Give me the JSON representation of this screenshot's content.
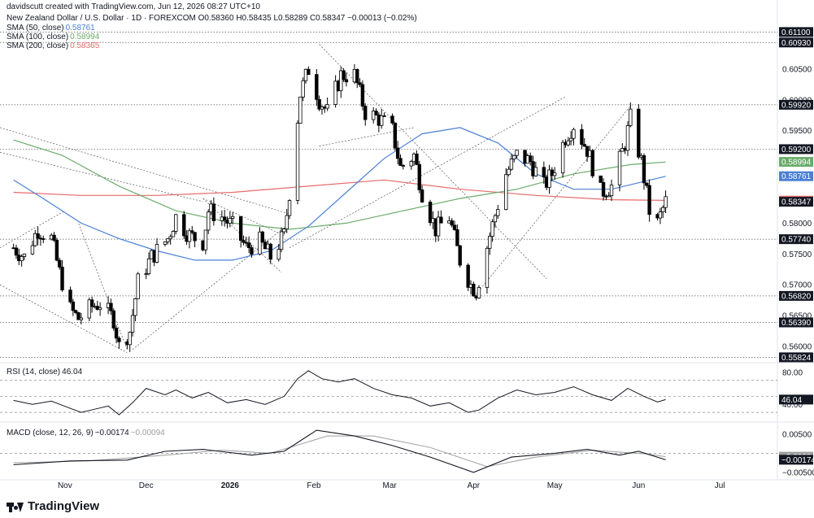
{
  "header": {
    "attribution": "davidscutt created with TradingView.com, Jun 12, 2026 08:27 UTC+10",
    "ohlc_line": "New Zealand Dollar / U.S. Dollar · 1D · FOREXCOM  O0.58360 H0.58435 L0.58289 C0.58347 −0.00013 (−0.02%)",
    "sma50_label": "SMA (50, close)",
    "sma50_value": "0.58761",
    "sma100_label": "SMA (100, close)",
    "sma100_value": "0.58994",
    "sma200_label": "SMA (200, close)",
    "sma200_value": "0.58365",
    "rsi_label": "RSI (14, close)",
    "rsi_value": "46.04",
    "macd_label": "MACD (close, 12, 26, 9)",
    "macd_value": "−0.00174",
    "macd_signal_value": "−0.00094"
  },
  "logo": {
    "text": "TradingView",
    "icon": "tradingview-logo-icon"
  },
  "colors": {
    "up": "#ffffff",
    "down": "#000000",
    "wick": "#000000",
    "sma50": "#4a7fd6",
    "sma100": "#6aab6a",
    "sma200": "#e86a6a",
    "rsi": "#131722",
    "macd": "#131722",
    "signal": "#9e9e9e",
    "price_tag": "#131722",
    "axis_text": "#131722"
  },
  "chart_data": {
    "type": "candlestick",
    "price_axis": {
      "ticks": [
        "0.60500",
        "0.60000",
        "0.59500",
        "0.58000",
        "0.57500",
        "0.57000",
        "0.56500",
        "0.56000"
      ],
      "ylim": [
        0.5575,
        0.6125
      ]
    },
    "time_axis": {
      "labels": [
        "Nov",
        "Dec",
        "2026",
        "Feb",
        "Mar",
        "Apr",
        "May",
        "Jun",
        "Jul"
      ]
    },
    "horizontal_levels": [
      "0.61100",
      "0.60930",
      "0.59920",
      "0.59200",
      "0.57740",
      "0.56820",
      "0.56390",
      "0.55824"
    ],
    "current_tags": [
      {
        "text": "0.58994",
        "series": "sma100"
      },
      {
        "text": "0.58761",
        "series": "sma50"
      },
      {
        "text": "0.58365",
        "series": "sma200"
      },
      {
        "text": "0.58347",
        "series": "price"
      }
    ],
    "close_path": [
      [
        "2025-10-13",
        0.576
      ],
      [
        "2025-10-17",
        0.5745
      ],
      [
        "2025-10-22",
        0.579
      ],
      [
        "2025-10-27",
        0.5775
      ],
      [
        "2025-10-30",
        0.572
      ],
      [
        "2025-11-03",
        0.566
      ],
      [
        "2025-11-06",
        0.5645
      ],
      [
        "2025-11-11",
        0.5665
      ],
      [
        "2025-11-14",
        0.567
      ],
      [
        "2025-11-19",
        0.5645
      ],
      [
        "2025-11-21",
        0.56
      ],
      [
        "2025-11-25",
        0.5625
      ],
      [
        "2025-11-28",
        0.5705
      ],
      [
        "2025-12-03",
        0.5745
      ],
      [
        "2025-12-09",
        0.5775
      ],
      [
        "2025-12-12",
        0.581
      ],
      [
        "2025-12-17",
        0.578
      ],
      [
        "2025-12-22",
        0.577
      ],
      [
        "2025-12-24",
        0.582
      ],
      [
        "2025-12-29",
        0.581
      ],
      [
        "2026-01-02",
        0.5795
      ],
      [
        "2026-01-07",
        0.576
      ],
      [
        "2026-01-12",
        0.577
      ],
      [
        "2026-01-16",
        0.5745
      ],
      [
        "2026-01-21",
        0.578
      ],
      [
        "2026-01-23",
        0.585
      ],
      [
        "2026-01-27",
        0.601
      ],
      [
        "2026-01-30",
        0.605
      ],
      [
        "2026-02-03",
        0.6
      ],
      [
        "2026-02-06",
        0.598
      ],
      [
        "2026-02-11",
        0.604
      ],
      [
        "2026-02-16",
        0.604
      ],
      [
        "2026-02-20",
        0.598
      ],
      [
        "2026-02-25",
        0.597
      ],
      [
        "2026-03-02",
        0.595
      ],
      [
        "2026-03-05",
        0.589
      ],
      [
        "2026-03-10",
        0.591
      ],
      [
        "2026-03-13",
        0.585
      ],
      [
        "2026-03-18",
        0.579
      ],
      [
        "2026-03-23",
        0.581
      ],
      [
        "2026-03-27",
        0.574
      ],
      [
        "2026-03-31",
        0.57
      ],
      [
        "2026-04-02",
        0.569
      ],
      [
        "2026-04-07",
        0.578
      ],
      [
        "2026-04-13",
        0.588
      ],
      [
        "2026-04-17",
        0.591
      ],
      [
        "2026-04-22",
        0.59
      ],
      [
        "2026-04-27",
        0.586
      ],
      [
        "2026-04-30",
        0.588
      ],
      [
        "2026-05-05",
        0.594
      ],
      [
        "2026-05-08",
        0.596
      ],
      [
        "2026-05-13",
        0.592
      ],
      [
        "2026-05-18",
        0.585
      ],
      [
        "2026-05-22",
        0.586
      ],
      [
        "2026-05-27",
        0.593
      ],
      [
        "2026-05-29",
        0.597
      ],
      [
        "2026-06-02",
        0.59
      ],
      [
        "2026-06-05",
        0.582
      ],
      [
        "2026-06-08",
        0.58
      ],
      [
        "2026-06-11",
        0.5835
      ]
    ],
    "sma50": [
      [
        "2025-10-13",
        0.587
      ],
      [
        "2025-10-24",
        0.584
      ],
      [
        "2025-11-07",
        0.58
      ],
      [
        "2025-11-21",
        0.5775
      ],
      [
        "2025-12-05",
        0.5755
      ],
      [
        "2025-12-19",
        0.574
      ],
      [
        "2026-01-02",
        0.574
      ],
      [
        "2026-01-16",
        0.5755
      ],
      [
        "2026-01-30",
        0.5795
      ],
      [
        "2026-02-13",
        0.585
      ],
      [
        "2026-02-27",
        0.5905
      ],
      [
        "2026-03-13",
        0.5945
      ],
      [
        "2026-03-27",
        0.5955
      ],
      [
        "2026-04-10",
        0.593
      ],
      [
        "2026-04-24",
        0.588
      ],
      [
        "2026-05-08",
        0.5855
      ],
      [
        "2026-05-22",
        0.5855
      ],
      [
        "2026-06-11",
        0.5876
      ]
    ],
    "sma100": [
      [
        "2025-10-13",
        0.5935
      ],
      [
        "2025-10-31",
        0.591
      ],
      [
        "2025-11-21",
        0.586
      ],
      [
        "2025-12-12",
        0.582
      ],
      [
        "2026-01-02",
        0.58
      ],
      [
        "2026-01-23",
        0.579
      ],
      [
        "2026-02-13",
        0.58
      ],
      [
        "2026-03-06",
        0.582
      ],
      [
        "2026-03-27",
        0.584
      ],
      [
        "2026-04-17",
        0.5855
      ],
      [
        "2026-05-08",
        0.588
      ],
      [
        "2026-05-29",
        0.5895
      ],
      [
        "2026-06-11",
        0.5899
      ]
    ],
    "sma200": [
      [
        "2025-10-13",
        0.585
      ],
      [
        "2025-11-07",
        0.5845
      ],
      [
        "2025-12-05",
        0.5845
      ],
      [
        "2026-01-02",
        0.585
      ],
      [
        "2026-01-30",
        0.586
      ],
      [
        "2026-02-27",
        0.587
      ],
      [
        "2026-03-27",
        0.5855
      ],
      [
        "2026-04-24",
        0.5845
      ],
      [
        "2026-05-22",
        0.5838
      ],
      [
        "2026-06-11",
        0.5837
      ]
    ],
    "rsi": {
      "ticks": [
        "80.00",
        "40.00"
      ],
      "ylim": [
        20,
        90
      ],
      "levels": [
        70,
        50,
        30
      ],
      "series": [
        [
          "2025-10-13",
          45
        ],
        [
          "2025-10-20",
          40
        ],
        [
          "2025-10-27",
          44
        ],
        [
          "2025-11-03",
          35
        ],
        [
          "2025-11-07",
          30
        ],
        [
          "2025-11-12",
          34
        ],
        [
          "2025-11-17",
          38
        ],
        [
          "2025-11-21",
          27
        ],
        [
          "2025-11-26",
          42
        ],
        [
          "2025-12-01",
          60
        ],
        [
          "2025-12-08",
          52
        ],
        [
          "2025-12-12",
          58
        ],
        [
          "2025-12-18",
          48
        ],
        [
          "2025-12-24",
          55
        ],
        [
          "2025-12-31",
          42
        ],
        [
          "2026-01-07",
          46
        ],
        [
          "2026-01-14",
          40
        ],
        [
          "2026-01-21",
          50
        ],
        [
          "2026-01-26",
          72
        ],
        [
          "2026-01-30",
          82
        ],
        [
          "2026-02-04",
          72
        ],
        [
          "2026-02-10",
          68
        ],
        [
          "2026-02-16",
          72
        ],
        [
          "2026-02-23",
          60
        ],
        [
          "2026-03-02",
          52
        ],
        [
          "2026-03-09",
          48
        ],
        [
          "2026-03-16",
          38
        ],
        [
          "2026-03-23",
          42
        ],
        [
          "2026-03-30",
          30
        ],
        [
          "2026-04-03",
          33
        ],
        [
          "2026-04-10",
          48
        ],
        [
          "2026-04-17",
          58
        ],
        [
          "2026-04-24",
          52
        ],
        [
          "2026-05-01",
          55
        ],
        [
          "2026-05-08",
          62
        ],
        [
          "2026-05-15",
          52
        ],
        [
          "2026-05-22",
          45
        ],
        [
          "2026-05-28",
          60
        ],
        [
          "2026-06-03",
          50
        ],
        [
          "2026-06-08",
          43
        ],
        [
          "2026-06-11",
          46
        ]
      ]
    },
    "macd": {
      "ticks": [
        "0.00500",
        "−0.00500"
      ],
      "ylim": [
        -0.0065,
        0.0075
      ],
      "macd_series": [
        [
          "2025-10-13",
          -0.003
        ],
        [
          "2025-11-03",
          -0.002
        ],
        [
          "2025-11-24",
          -0.0018
        ],
        [
          "2025-12-08",
          0.0005
        ],
        [
          "2025-12-22",
          0.001
        ],
        [
          "2026-01-09",
          -0.0005
        ],
        [
          "2026-01-21",
          0.0005
        ],
        [
          "2026-02-02",
          0.006
        ],
        [
          "2026-02-16",
          0.0045
        ],
        [
          "2026-03-02",
          0.002
        ],
        [
          "2026-03-16",
          -0.001
        ],
        [
          "2026-04-01",
          -0.005
        ],
        [
          "2026-04-15",
          -0.001
        ],
        [
          "2026-05-01",
          0.0
        ],
        [
          "2026-05-13",
          0.001
        ],
        [
          "2026-05-25",
          -0.0005
        ],
        [
          "2026-06-01",
          0.0005
        ],
        [
          "2026-06-11",
          -0.0017
        ]
      ],
      "signal_series": [
        [
          "2025-10-13",
          -0.0025
        ],
        [
          "2025-11-10",
          -0.002
        ],
        [
          "2025-12-08",
          -0.0005
        ],
        [
          "2025-12-29",
          0.0008
        ],
        [
          "2026-01-16",
          0.0
        ],
        [
          "2026-02-06",
          0.0045
        ],
        [
          "2026-02-23",
          0.0045
        ],
        [
          "2026-03-16",
          0.0015
        ],
        [
          "2026-04-06",
          -0.0035
        ],
        [
          "2026-04-24",
          -0.001
        ],
        [
          "2026-05-15",
          0.0008
        ],
        [
          "2026-06-04",
          -0.0002
        ],
        [
          "2026-06-11",
          -0.0009
        ]
      ]
    }
  }
}
